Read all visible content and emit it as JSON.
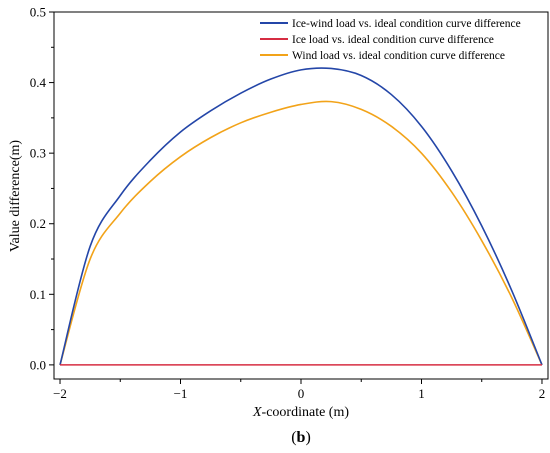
{
  "chart_data": {
    "type": "line",
    "xlabel_italic": "X",
    "xlabel_rest": "-coordinate (m)",
    "ylabel": "Value difference(m)",
    "panel_label_open": "(",
    "panel_label_letter": "b",
    "panel_label_close": ")",
    "xlim": [
      -2.05,
      2.05
    ],
    "ylim": [
      -0.02,
      0.5
    ],
    "xticks": [
      -2,
      -1,
      0,
      1,
      2
    ],
    "xtick_labels": [
      "−2",
      "−1",
      "0",
      "1",
      "2"
    ],
    "yticks": [
      0.0,
      0.1,
      0.2,
      0.3,
      0.4,
      0.5
    ],
    "ytick_labels": [
      "0.0",
      "0.1",
      "0.2",
      "0.3",
      "0.4",
      "0.5"
    ],
    "legend_position": "top-right",
    "x": [
      -2.0,
      -1.75,
      -1.5,
      -1.25,
      -1.0,
      -0.75,
      -0.5,
      -0.25,
      0.0,
      0.25,
      0.5,
      0.75,
      1.0,
      1.25,
      1.5,
      1.75,
      2.0
    ],
    "series": [
      {
        "name": "Ice-wind load vs. ideal condition curve difference",
        "color": "#2446a8",
        "values": [
          0.0,
          0.168,
          0.24,
          0.29,
          0.33,
          0.36,
          0.385,
          0.405,
          0.418,
          0.42,
          0.41,
          0.383,
          0.338,
          0.275,
          0.197,
          0.105,
          0.0
        ]
      },
      {
        "name": "Ice load vs. ideal condition curve difference",
        "color": "#d62d42",
        "values": [
          0.0,
          0.0,
          0.0,
          0.0,
          0.0,
          0.0,
          0.0,
          0.0,
          0.0,
          0.0,
          0.0,
          0.0,
          0.0,
          0.0,
          0.0,
          0.0,
          0.0
        ]
      },
      {
        "name": "Wind load vs. ideal condition curve difference",
        "color": "#f2a319",
        "values": [
          0.0,
          0.15,
          0.215,
          0.26,
          0.295,
          0.322,
          0.343,
          0.358,
          0.369,
          0.373,
          0.362,
          0.338,
          0.3,
          0.245,
          0.176,
          0.095,
          0.0
        ]
      }
    ]
  }
}
